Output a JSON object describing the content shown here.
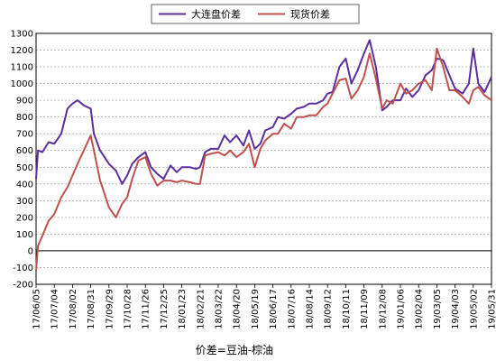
{
  "chart_data": {
    "type": "line",
    "title": "",
    "xlabel": "价差=豆油-棕油",
    "ylabel": "",
    "ylim": [
      -200,
      1300
    ],
    "yticks": [
      -200,
      -100,
      0,
      100,
      200,
      300,
      400,
      500,
      600,
      700,
      800,
      900,
      1000,
      1100,
      1200,
      1300
    ],
    "grid": true,
    "legend_position": "top-center",
    "x_tick_labels": [
      "17/06/05",
      "17/07/04",
      "17/08/02",
      "17/08/31",
      "17/09/29",
      "17/10/28",
      "17/11/26",
      "17/12/25",
      "18/01/23",
      "18/02/21",
      "18/03/22",
      "18/04/20",
      "18/05/19",
      "18/06/17",
      "18/07/16",
      "18/08/14",
      "18/09/12",
      "18/10/11",
      "18/11/09",
      "18/12/08",
      "19/01/06",
      "19/02/04",
      "19/03/05",
      "19/04/03",
      "19/05/02",
      "19/05/31"
    ],
    "x_range": [
      "17/06/05",
      "19/05/31"
    ],
    "series": [
      {
        "name": "大连盘价差",
        "color": "#5b2f9e",
        "values": [
          [
            "17/06/05",
            430
          ],
          [
            "17/06/08",
            600
          ],
          [
            "17/06/15",
            590
          ],
          [
            "17/06/25",
            650
          ],
          [
            "17/07/04",
            640
          ],
          [
            "17/07/15",
            700
          ],
          [
            "17/07/25",
            850
          ],
          [
            "17/08/02",
            880
          ],
          [
            "17/08/10",
            900
          ],
          [
            "17/08/20",
            870
          ],
          [
            "17/08/31",
            850
          ],
          [
            "17/09/05",
            700
          ],
          [
            "17/09/15",
            600
          ],
          [
            "17/09/29",
            520
          ],
          [
            "17/10/10",
            480
          ],
          [
            "17/10/20",
            400
          ],
          [
            "17/10/28",
            450
          ],
          [
            "17/11/05",
            520
          ],
          [
            "17/11/15",
            560
          ],
          [
            "17/11/26",
            590
          ],
          [
            "17/12/05",
            500
          ],
          [
            "17/12/15",
            460
          ],
          [
            "17/12/25",
            430
          ],
          [
            "18/01/05",
            510
          ],
          [
            "18/01/15",
            470
          ],
          [
            "18/01/23",
            500
          ],
          [
            "18/02/05",
            500
          ],
          [
            "18/02/15",
            490
          ],
          [
            "18/02/21",
            500
          ],
          [
            "18/03/01",
            590
          ],
          [
            "18/03/10",
            610
          ],
          [
            "18/03/22",
            610
          ],
          [
            "18/04/01",
            690
          ],
          [
            "18/04/10",
            650
          ],
          [
            "18/04/20",
            690
          ],
          [
            "18/05/01",
            630
          ],
          [
            "18/05/10",
            720
          ],
          [
            "18/05/19",
            610
          ],
          [
            "18/05/28",
            640
          ],
          [
            "18/06/05",
            720
          ],
          [
            "18/06/17",
            740
          ],
          [
            "18/06/25",
            800
          ],
          [
            "18/07/05",
            790
          ],
          [
            "18/07/16",
            820
          ],
          [
            "18/07/25",
            850
          ],
          [
            "18/08/05",
            860
          ],
          [
            "18/08/14",
            880
          ],
          [
            "18/08/25",
            880
          ],
          [
            "18/09/05",
            900
          ],
          [
            "18/09/12",
            940
          ],
          [
            "18/09/20",
            950
          ],
          [
            "18/10/01",
            1100
          ],
          [
            "18/10/11",
            1150
          ],
          [
            "18/10/20",
            1000
          ],
          [
            "18/10/30",
            1080
          ],
          [
            "18/11/09",
            1180
          ],
          [
            "18/11/18",
            1260
          ],
          [
            "18/11/28",
            1100
          ],
          [
            "18/12/08",
            840
          ],
          [
            "18/12/15",
            860
          ],
          [
            "18/12/25",
            900
          ],
          [
            "19/01/06",
            900
          ],
          [
            "19/01/15",
            970
          ],
          [
            "19/01/25",
            920
          ],
          [
            "19/02/04",
            960
          ],
          [
            "19/02/15",
            1050
          ],
          [
            "19/02/25",
            1080
          ],
          [
            "19/03/05",
            1150
          ],
          [
            "19/03/15",
            1140
          ],
          [
            "19/03/25",
            1050
          ],
          [
            "19/04/03",
            970
          ],
          [
            "19/04/15",
            940
          ],
          [
            "19/04/25",
            1000
          ],
          [
            "19/05/02",
            1210
          ],
          [
            "19/05/10",
            1000
          ],
          [
            "19/05/20",
            950
          ],
          [
            "19/05/31",
            1040
          ]
        ]
      },
      {
        "name": "现货价差",
        "color": "#c0504d",
        "values": [
          [
            "17/06/05",
            -120
          ],
          [
            "17/06/08",
            30
          ],
          [
            "17/06/15",
            90
          ],
          [
            "17/06/25",
            180
          ],
          [
            "17/07/04",
            220
          ],
          [
            "17/07/15",
            320
          ],
          [
            "17/07/25",
            380
          ],
          [
            "17/08/02",
            450
          ],
          [
            "17/08/10",
            520
          ],
          [
            "17/08/20",
            600
          ],
          [
            "17/08/31",
            690
          ],
          [
            "17/09/05",
            600
          ],
          [
            "17/09/15",
            420
          ],
          [
            "17/09/29",
            260
          ],
          [
            "17/10/10",
            200
          ],
          [
            "17/10/20",
            280
          ],
          [
            "17/10/28",
            320
          ],
          [
            "17/11/05",
            430
          ],
          [
            "17/11/15",
            540
          ],
          [
            "17/11/26",
            560
          ],
          [
            "17/12/05",
            460
          ],
          [
            "17/12/15",
            390
          ],
          [
            "17/12/25",
            420
          ],
          [
            "18/01/05",
            420
          ],
          [
            "18/01/15",
            410
          ],
          [
            "18/01/23",
            420
          ],
          [
            "18/02/05",
            410
          ],
          [
            "18/02/15",
            400
          ],
          [
            "18/02/21",
            400
          ],
          [
            "18/03/01",
            570
          ],
          [
            "18/03/10",
            580
          ],
          [
            "18/03/22",
            590
          ],
          [
            "18/04/01",
            570
          ],
          [
            "18/04/10",
            600
          ],
          [
            "18/04/20",
            560
          ],
          [
            "18/05/01",
            590
          ],
          [
            "18/05/10",
            640
          ],
          [
            "18/05/19",
            500
          ],
          [
            "18/05/28",
            610
          ],
          [
            "18/06/05",
            660
          ],
          [
            "18/06/17",
            700
          ],
          [
            "18/06/25",
            700
          ],
          [
            "18/07/05",
            760
          ],
          [
            "18/07/16",
            730
          ],
          [
            "18/07/25",
            800
          ],
          [
            "18/08/05",
            800
          ],
          [
            "18/08/14",
            810
          ],
          [
            "18/08/25",
            810
          ],
          [
            "18/09/05",
            860
          ],
          [
            "18/09/12",
            880
          ],
          [
            "18/09/20",
            940
          ],
          [
            "18/10/01",
            1020
          ],
          [
            "18/10/11",
            1030
          ],
          [
            "18/10/20",
            910
          ],
          [
            "18/10/30",
            960
          ],
          [
            "18/11/09",
            1040
          ],
          [
            "18/11/18",
            1180
          ],
          [
            "18/11/28",
            1030
          ],
          [
            "18/12/08",
            850
          ],
          [
            "18/12/15",
            900
          ],
          [
            "18/12/25",
            880
          ],
          [
            "19/01/06",
            1000
          ],
          [
            "19/01/15",
            940
          ],
          [
            "19/01/25",
            960
          ],
          [
            "19/02/04",
            1000
          ],
          [
            "19/02/15",
            1020
          ],
          [
            "19/02/25",
            960
          ],
          [
            "19/03/05",
            1210
          ],
          [
            "19/03/15",
            1100
          ],
          [
            "19/03/25",
            960
          ],
          [
            "19/04/03",
            960
          ],
          [
            "19/04/15",
            920
          ],
          [
            "19/04/25",
            880
          ],
          [
            "19/05/02",
            960
          ],
          [
            "19/05/10",
            980
          ],
          [
            "19/05/20",
            930
          ],
          [
            "19/05/31",
            900
          ]
        ]
      }
    ]
  }
}
